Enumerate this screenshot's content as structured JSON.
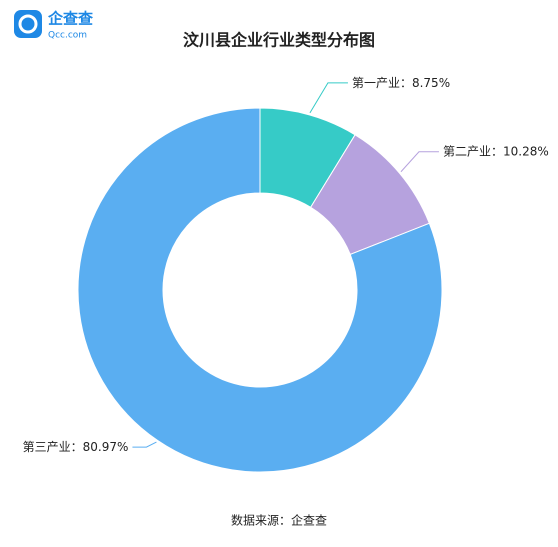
{
  "logo": {
    "name": "企查查",
    "domain": "Qcc.com"
  },
  "chart_data": {
    "type": "donut",
    "title": "汶川县企业行业类型分布图",
    "categories": [
      "第一产业",
      "第二产业",
      "第三产业"
    ],
    "values": [
      8.75,
      10.28,
      80.97
    ],
    "value_labels": [
      "8.75%",
      "10.28%",
      "80.97%"
    ],
    "label_separator": "：",
    "colors": [
      "#36cbc7",
      "#b6a2de",
      "#5aaef1"
    ],
    "source": "数据来源：企查查"
  }
}
